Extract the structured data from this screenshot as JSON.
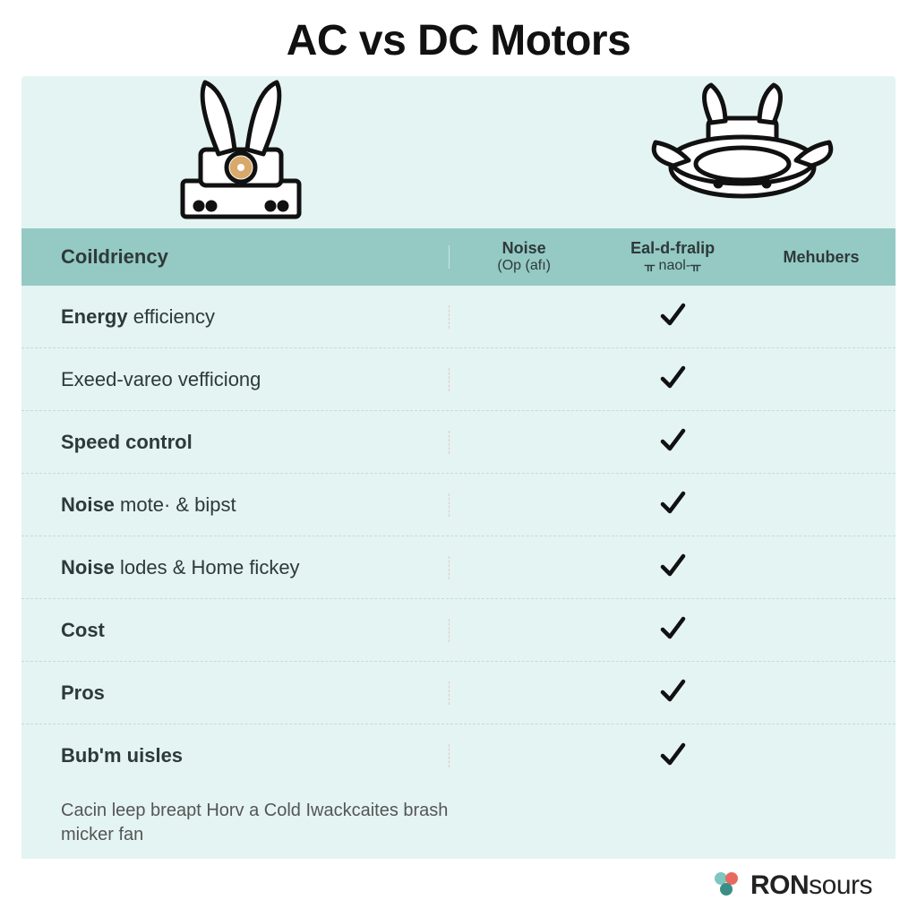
{
  "title": "AC vs DC Motors",
  "header": {
    "label": "Coildriency",
    "cols": [
      {
        "line1": "Noise",
        "line2": "(Op (afı)"
      },
      {
        "line1": "Eal-d-fralip",
        "line2": "ᚂ naol-ᚂ"
      },
      {
        "line1": "Mehubers",
        "line2": ""
      }
    ]
  },
  "rows": [
    {
      "bold": "Energy",
      "rest": " efficiency",
      "checks": [
        false,
        true,
        false
      ]
    },
    {
      "bold": "",
      "rest": "Exeed-vareo vefficiong",
      "checks": [
        false,
        true,
        false
      ]
    },
    {
      "bold": "Speed control",
      "rest": "",
      "checks": [
        false,
        true,
        false
      ]
    },
    {
      "bold": "Noise",
      "rest": " mote· & bipst",
      "checks": [
        false,
        true,
        false
      ]
    },
    {
      "bold": "Noise",
      "rest": " lodes & Home fickey",
      "checks": [
        false,
        true,
        false
      ]
    },
    {
      "bold": "Cost",
      "rest": "",
      "checks": [
        false,
        true,
        false
      ]
    },
    {
      "bold": "Pros",
      "rest": "",
      "checks": [
        false,
        true,
        false
      ]
    },
    {
      "bold": "Bub'm uisles",
      "rest": "",
      "checks": [
        false,
        true,
        false
      ]
    }
  ],
  "caption": "Cacin leep breapt Horv a Cold Iwackcaites brash micker fan",
  "brand": {
    "bold": "RON",
    "rest": "sours"
  },
  "colors": {
    "table_bg": "#e4f4f2",
    "header_bg": "#95c9c4",
    "text": "#2d3a3a",
    "check": "#111111",
    "dot1": "#7fc6c0",
    "dot2": "#e86a5f",
    "dot3": "#3a8e86",
    "accent_ring": "#d8a96a"
  }
}
